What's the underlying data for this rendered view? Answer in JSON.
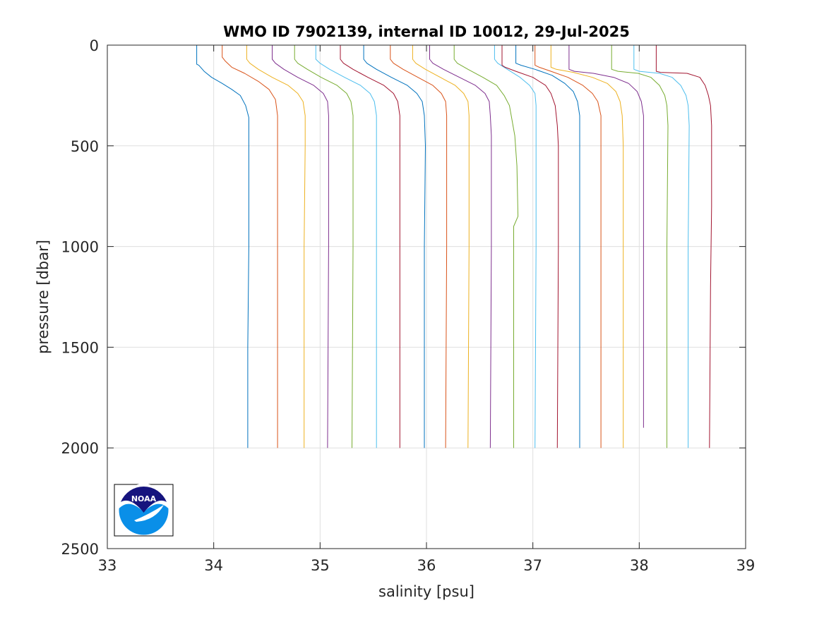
{
  "chart_data": {
    "type": "line",
    "title": "WMO ID 7902139, internal ID 10012, 29-Jul-2025",
    "xlabel": "salinity [psu]",
    "ylabel": "pressure [dbar]",
    "xlim": [
      33,
      39
    ],
    "ylim": [
      0,
      2500
    ],
    "y_reversed": true,
    "grid": true,
    "x_ticks": [
      "33",
      "34",
      "35",
      "36",
      "37",
      "38",
      "39"
    ],
    "y_ticks": [
      "0",
      "500",
      "1000",
      "1500",
      "2000",
      "2500"
    ],
    "logo_text": "NOAA",
    "colors": [
      "#0072BD",
      "#D95319",
      "#EDB120",
      "#7E2F8E",
      "#77AC30",
      "#4DBEEE",
      "#A2142F"
    ],
    "series": [
      {
        "x": [
          33.84,
          33.84,
          33.86,
          33.91,
          33.98,
          34.08,
          34.17,
          34.25,
          34.3,
          34.33,
          34.33,
          34.33,
          34.32,
          34.32
        ],
        "y": [
          0,
          95,
          100,
          130,
          160,
          190,
          220,
          250,
          300,
          360,
          450,
          1000,
          1500,
          2000
        ]
      },
      {
        "x": [
          34.08,
          34.08,
          34.11,
          34.17,
          34.29,
          34.42,
          34.52,
          34.58,
          34.6,
          34.6,
          34.6,
          34.6
        ],
        "y": [
          0,
          60,
          80,
          110,
          140,
          180,
          220,
          270,
          350,
          500,
          1000,
          2000
        ]
      },
      {
        "x": [
          34.31,
          34.31,
          34.34,
          34.42,
          34.55,
          34.7,
          34.79,
          34.84,
          34.86,
          34.86,
          34.85,
          34.85
        ],
        "y": [
          0,
          70,
          90,
          120,
          160,
          200,
          240,
          280,
          350,
          500,
          1000,
          2000
        ]
      },
      {
        "x": [
          34.55,
          34.55,
          34.58,
          34.66,
          34.79,
          34.94,
          35.03,
          35.07,
          35.08,
          35.08,
          35.08,
          35.07
        ],
        "y": [
          0,
          70,
          90,
          120,
          160,
          200,
          240,
          280,
          350,
          500,
          1000,
          2000
        ]
      },
      {
        "x": [
          34.76,
          34.76,
          34.79,
          34.88,
          35.01,
          35.16,
          35.25,
          35.29,
          35.31,
          35.31,
          35.31,
          35.3
        ],
        "y": [
          0,
          70,
          90,
          120,
          160,
          200,
          240,
          280,
          350,
          500,
          1000,
          2000
        ]
      },
      {
        "x": [
          34.96,
          34.96,
          35.0,
          35.09,
          35.23,
          35.38,
          35.47,
          35.51,
          35.53,
          35.53,
          35.53,
          35.53
        ],
        "y": [
          0,
          70,
          90,
          120,
          160,
          200,
          240,
          280,
          350,
          500,
          1000,
          2000
        ]
      },
      {
        "x": [
          35.19,
          35.19,
          35.22,
          35.31,
          35.45,
          35.6,
          35.69,
          35.73,
          35.75,
          35.75,
          35.75,
          35.75
        ],
        "y": [
          0,
          70,
          90,
          120,
          160,
          200,
          240,
          280,
          350,
          500,
          1000,
          2000
        ]
      },
      {
        "x": [
          35.41,
          35.41,
          35.44,
          35.53,
          35.67,
          35.82,
          35.91,
          35.96,
          35.98,
          35.99,
          35.98,
          35.98
        ],
        "y": [
          0,
          70,
          90,
          120,
          160,
          200,
          240,
          280,
          350,
          500,
          1000,
          2000
        ]
      },
      {
        "x": [
          35.66,
          35.66,
          35.69,
          35.78,
          35.92,
          36.06,
          36.14,
          36.18,
          36.19,
          36.19,
          36.19,
          36.18
        ],
        "y": [
          0,
          70,
          90,
          120,
          160,
          200,
          240,
          280,
          350,
          500,
          1000,
          2000
        ]
      },
      {
        "x": [
          35.87,
          35.87,
          35.9,
          35.99,
          36.13,
          36.27,
          36.35,
          36.39,
          36.4,
          36.4,
          36.4,
          36.39
        ],
        "y": [
          0,
          70,
          90,
          120,
          160,
          200,
          240,
          280,
          350,
          500,
          1000,
          2000
        ]
      },
      {
        "x": [
          36.03,
          36.03,
          36.06,
          36.16,
          36.31,
          36.46,
          36.55,
          36.59,
          36.6,
          36.61,
          36.61,
          36.6
        ],
        "y": [
          0,
          70,
          90,
          120,
          160,
          200,
          240,
          280,
          350,
          450,
          1000,
          2000
        ]
      },
      {
        "x": [
          36.26,
          36.26,
          36.29,
          36.39,
          36.53,
          36.66,
          36.73,
          36.78,
          36.83,
          36.85,
          36.86,
          36.82,
          36.82,
          36.82
        ],
        "y": [
          0,
          70,
          90,
          120,
          160,
          200,
          250,
          300,
          450,
          600,
          850,
          900,
          1000,
          2000
        ]
      },
      {
        "x": [
          36.64,
          36.64,
          36.67,
          36.76,
          36.88,
          36.97,
          37.02,
          37.03,
          37.03,
          37.03,
          37.02
        ],
        "y": [
          0,
          70,
          90,
          120,
          160,
          200,
          240,
          300,
          400,
          1000,
          2000
        ]
      },
      {
        "x": [
          36.71,
          36.71,
          36.74,
          36.84,
          37.0,
          37.12,
          37.17,
          37.21,
          37.23,
          37.24,
          37.24,
          37.23
        ],
        "y": [
          0,
          100,
          110,
          130,
          160,
          200,
          240,
          300,
          400,
          500,
          1000,
          2000
        ]
      },
      {
        "x": [
          36.84,
          36.84,
          36.89,
          37.02,
          37.18,
          37.3,
          37.38,
          37.42,
          37.44,
          37.44,
          37.44,
          37.44
        ],
        "y": [
          0,
          90,
          100,
          120,
          150,
          190,
          230,
          280,
          350,
          500,
          1000,
          2000
        ]
      },
      {
        "x": [
          37.02,
          37.02,
          37.06,
          37.17,
          37.33,
          37.47,
          37.56,
          37.61,
          37.64,
          37.64,
          37.64,
          37.64
        ],
        "y": [
          0,
          100,
          110,
          130,
          160,
          200,
          240,
          280,
          350,
          500,
          1000,
          2000
        ]
      },
      {
        "x": [
          37.17,
          37.17,
          37.22,
          37.38,
          37.56,
          37.7,
          37.78,
          37.82,
          37.84,
          37.85,
          37.85,
          37.85
        ],
        "y": [
          0,
          110,
          120,
          135,
          160,
          190,
          230,
          280,
          350,
          500,
          1000,
          2000
        ]
      },
      {
        "x": [
          37.34,
          37.34,
          37.39,
          37.57,
          37.76,
          37.9,
          37.98,
          38.02,
          38.04,
          38.04,
          38.04,
          38.04
        ],
        "y": [
          0,
          120,
          130,
          140,
          160,
          190,
          230,
          280,
          350,
          500,
          1000,
          1900
        ]
      },
      {
        "x": [
          37.74,
          37.74,
          37.8,
          37.99,
          38.11,
          38.19,
          38.24,
          38.26,
          38.27,
          38.26,
          38.26
        ],
        "y": [
          0,
          120,
          130,
          140,
          160,
          200,
          250,
          300,
          400,
          1000,
          2000
        ]
      },
      {
        "x": [
          37.95,
          37.95,
          38.0,
          38.19,
          38.31,
          38.39,
          38.44,
          38.46,
          38.47,
          38.46,
          38.46
        ],
        "y": [
          0,
          120,
          130,
          140,
          160,
          200,
          250,
          300,
          400,
          1000,
          2000
        ]
      },
      {
        "x": [
          38.16,
          38.16,
          38.2,
          38.45,
          38.57,
          38.62,
          38.65,
          38.67,
          38.68,
          38.68,
          38.67,
          38.66
        ],
        "y": [
          0,
          130,
          135,
          140,
          160,
          200,
          250,
          300,
          400,
          800,
          1200,
          2000
        ]
      }
    ]
  }
}
